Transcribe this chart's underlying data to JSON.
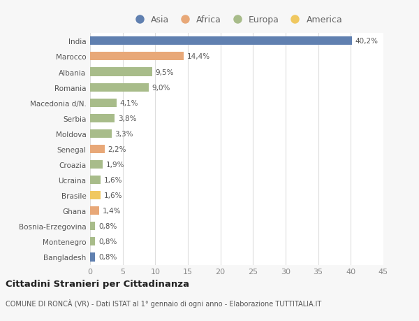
{
  "countries": [
    "India",
    "Marocco",
    "Albania",
    "Romania",
    "Macedonia d/N.",
    "Serbia",
    "Moldova",
    "Senegal",
    "Croazia",
    "Ucraina",
    "Brasile",
    "Ghana",
    "Bosnia-Erzegovina",
    "Montenegro",
    "Bangladesh"
  ],
  "values": [
    40.2,
    14.4,
    9.5,
    9.0,
    4.1,
    3.8,
    3.3,
    2.2,
    1.9,
    1.6,
    1.6,
    1.4,
    0.8,
    0.8,
    0.8
  ],
  "labels": [
    "40,2%",
    "14,4%",
    "9,5%",
    "9,0%",
    "4,1%",
    "3,8%",
    "3,3%",
    "2,2%",
    "1,9%",
    "1,6%",
    "1,6%",
    "1,4%",
    "0,8%",
    "0,8%",
    "0,8%"
  ],
  "continents": [
    "Asia",
    "Africa",
    "Europa",
    "Europa",
    "Europa",
    "Europa",
    "Europa",
    "Africa",
    "Europa",
    "Europa",
    "America",
    "Africa",
    "Europa",
    "Europa",
    "Asia"
  ],
  "colors": {
    "Asia": "#6080b0",
    "Africa": "#e8a878",
    "Europa": "#a8bc8a",
    "America": "#f0c860"
  },
  "legend_order": [
    "Asia",
    "Africa",
    "Europa",
    "America"
  ],
  "title": "Cittadini Stranieri per Cittadinanza",
  "subtitle": "COMUNE DI RONCÀ (VR) - Dati ISTAT al 1° gennaio di ogni anno - Elaborazione TUTTITALIA.IT",
  "xlim": [
    0,
    45
  ],
  "xticks": [
    0,
    5,
    10,
    15,
    20,
    25,
    30,
    35,
    40,
    45
  ],
  "background_color": "#f7f7f7",
  "bar_background": "#ffffff"
}
